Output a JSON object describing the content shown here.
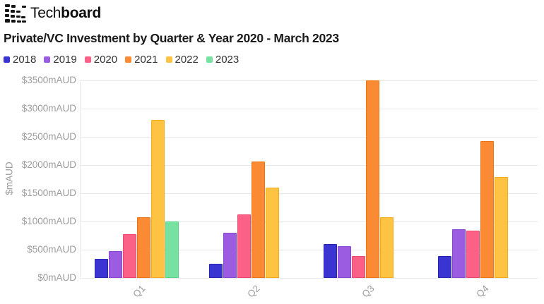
{
  "logo": {
    "text_regular": "Tech",
    "text_bold": "board"
  },
  "header": {
    "title": "Private/VC Investment by Quarter & Year 2020 - March 2023"
  },
  "chart_data": {
    "type": "bar",
    "title": "Private/VC Investment by Quarter & Year 2020 - March 2023",
    "categories": [
      "Q1",
      "Q2",
      "Q3",
      "Q4"
    ],
    "series": [
      {
        "name": "2018",
        "color": "#3a34d2",
        "border_color": "#2b24b4",
        "values": [
          340,
          250,
          600,
          390
        ]
      },
      {
        "name": "2019",
        "color": "#9b5ce2",
        "border_color": "#8747d0",
        "values": [
          480,
          800,
          560,
          860
        ]
      },
      {
        "name": "2020",
        "color": "#fb6186",
        "border_color": "#ef466e",
        "values": [
          780,
          1130,
          390,
          840
        ]
      },
      {
        "name": "2021",
        "color": "#fb8a35",
        "border_color": "#ee7315",
        "values": [
          1080,
          2060,
          3500,
          2430
        ]
      },
      {
        "name": "2022",
        "color": "#fec343",
        "border_color": "#f4ac19",
        "values": [
          2800,
          1600,
          1080,
          1790
        ]
      },
      {
        "name": "2023",
        "color": "#76e1a1",
        "border_color": "#57d287",
        "values": [
          1000,
          null,
          null,
          null
        ]
      }
    ],
    "xlabel": "",
    "ylabel": "$mAUD",
    "ylim": [
      0,
      3500
    ],
    "y_tick_step": 500,
    "y_tick_labels": [
      "$0mAUD",
      "$500mAUD",
      "$1000mAUD",
      "$1500mAUD",
      "$2000mAUD",
      "$2500mAUD",
      "$3000mAUD",
      "$3500mAUD"
    ],
    "grid": "horizontal",
    "legend_position": "top-left"
  }
}
